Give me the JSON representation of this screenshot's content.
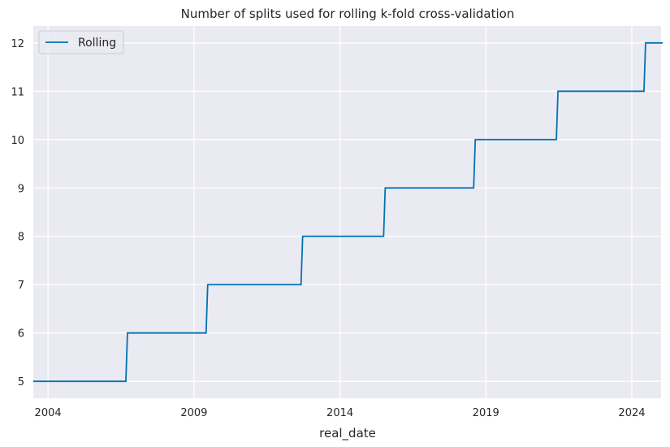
{
  "chart_data": {
    "type": "line",
    "title": "Number of splits used for rolling k-fold cross-validation",
    "xlabel": "real_date",
    "ylabel": "",
    "x_ticks": [
      "2004",
      "2009",
      "2014",
      "2019",
      "2024"
    ],
    "y_ticks": [
      "5",
      "6",
      "7",
      "8",
      "9",
      "10",
      "11",
      "12"
    ],
    "xlim": [
      "2003-07-01",
      "2025-01-01"
    ],
    "ylim": [
      4.65,
      12.35
    ],
    "grid": true,
    "legend_position": "top-left",
    "background_color": "#eaeaf2",
    "grid_color": "#ffffff",
    "series": [
      {
        "name": "Rolling",
        "color": "#0173b2",
        "step": "post",
        "x": [
          "2003-07-01",
          "2006-09-01",
          "2009-06-01",
          "2012-09-01",
          "2015-07-01",
          "2018-08-01",
          "2021-06-01",
          "2024-06-01",
          "2025-01-01"
        ],
        "y": [
          5,
          6,
          7,
          8,
          9,
          10,
          11,
          12,
          12
        ]
      }
    ]
  }
}
